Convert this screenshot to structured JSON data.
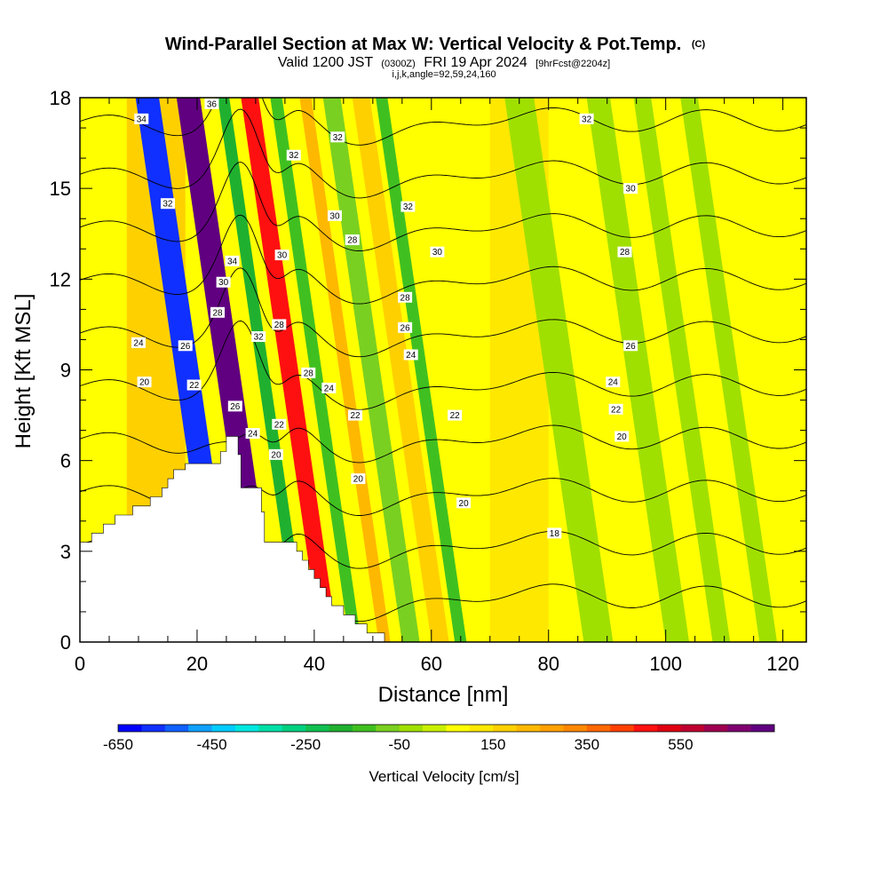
{
  "chart_data": {
    "type": "heatmap",
    "title": "Wind-Parallel Section at Max W: Vertical Velocity & Pot.Temp.",
    "title_mark": "(C)",
    "subtitle_parts": [
      "Valid 1200 JST",
      "(0300Z)",
      "FRI 19 Apr 2024",
      "[9hrFcst@2204z]"
    ],
    "subtitle2": "i,j,k,angle=92,59,24,160",
    "xlabel": "Distance [nm]",
    "ylabel": "Height [Kft MSL]",
    "xlim": [
      0,
      124
    ],
    "ylim": [
      0,
      18
    ],
    "x_ticks": [
      0,
      20,
      40,
      60,
      80,
      100,
      120
    ],
    "x_tick_labels": [
      "0",
      "20",
      "40",
      "60",
      "80",
      "100",
      "120"
    ],
    "y_ticks": [
      0,
      3,
      6,
      9,
      12,
      15,
      18
    ],
    "y_tick_labels": [
      "0",
      "3",
      "6",
      "9",
      "12",
      "15",
      "18"
    ],
    "colorbar": {
      "title": "Vertical Velocity [cm/s]",
      "levels_min": -650,
      "levels_max": 750,
      "step": 50,
      "labels": [
        "-650",
        "-450",
        "-250",
        "-50",
        "150",
        "350",
        "550"
      ],
      "label_values": [
        -650,
        -450,
        -250,
        -50,
        150,
        350,
        550
      ],
      "colors": [
        "#0000ff",
        "#1030ff",
        "#1060ff",
        "#10a0ff",
        "#00ccff",
        "#00e8e0",
        "#00e0a8",
        "#00d080",
        "#10c050",
        "#20b030",
        "#40c020",
        "#7ad020",
        "#a0e000",
        "#c8f000",
        "#ffff00",
        "#ffe800",
        "#ffd000",
        "#ffb800",
        "#ffa000",
        "#ff8800",
        "#ff6800",
        "#ff4000",
        "#ff1010",
        "#e00010",
        "#c00030",
        "#a00050",
        "#800070",
        "#600080"
      ]
    },
    "terrain": [
      [
        0,
        3.3
      ],
      [
        2,
        3.3
      ],
      [
        2,
        3.6
      ],
      [
        4,
        3.6
      ],
      [
        4,
        3.9
      ],
      [
        6,
        3.9
      ],
      [
        6,
        4.2
      ],
      [
        9,
        4.2
      ],
      [
        9,
        4.5
      ],
      [
        12,
        4.5
      ],
      [
        12,
        4.8
      ],
      [
        14,
        4.8
      ],
      [
        14,
        5.1
      ],
      [
        15,
        5.1
      ],
      [
        15,
        5.4
      ],
      [
        16,
        5.4
      ],
      [
        16,
        5.7
      ],
      [
        18,
        5.7
      ],
      [
        18,
        5.9
      ],
      [
        24,
        5.9
      ],
      [
        24,
        6.3
      ],
      [
        25,
        6.3
      ],
      [
        25,
        6.8
      ],
      [
        27,
        6.8
      ],
      [
        27,
        6.2
      ],
      [
        27.5,
        6.2
      ],
      [
        27.5,
        5.1
      ],
      [
        31,
        5.1
      ],
      [
        31,
        4.3
      ],
      [
        31.5,
        4.3
      ],
      [
        31.5,
        3.3
      ],
      [
        37,
        3.3
      ],
      [
        37,
        3.0
      ],
      [
        38,
        3.0
      ],
      [
        38,
        2.7
      ],
      [
        39,
        2.7
      ],
      [
        39,
        2.4
      ],
      [
        40,
        2.4
      ],
      [
        40,
        2.1
      ],
      [
        41,
        2.1
      ],
      [
        41,
        1.8
      ],
      [
        42,
        1.8
      ],
      [
        42,
        1.5
      ],
      [
        43,
        1.5
      ],
      [
        43,
        1.2
      ],
      [
        45,
        1.2
      ],
      [
        45,
        0.9
      ],
      [
        47,
        0.9
      ],
      [
        47,
        0.6
      ],
      [
        49,
        0.6
      ],
      [
        49,
        0.3
      ],
      [
        52,
        0.3
      ],
      [
        52,
        0
      ]
    ],
    "velocity_bands": [
      {
        "x": [
          0,
          124
        ],
        "w": 60
      },
      {
        "x": [
          8,
          18
        ],
        "w": 150
      },
      {
        "x": [
          23,
          27
        ],
        "w": -600
      },
      {
        "x": [
          30,
          34
        ],
        "w": 700
      },
      {
        "x": [
          37,
          39
        ],
        "w": -200
      },
      {
        "x": [
          41,
          44
        ],
        "w": 450
      },
      {
        "x": [
          46,
          48
        ],
        "w": -150
      },
      {
        "x": [
          51,
          53
        ],
        "w": 200
      },
      {
        "x": [
          55,
          58
        ],
        "w": -100
      },
      {
        "x": [
          60,
          63
        ],
        "w": 150
      },
      {
        "x": [
          64,
          66
        ],
        "w": -150
      },
      {
        "x": [
          70,
          80
        ],
        "w": 100
      },
      {
        "x": [
          86,
          91
        ],
        "w": -30
      },
      {
        "x": [
          100,
          104
        ],
        "w": -30
      },
      {
        "x": [
          108,
          111
        ],
        "w": -30
      },
      {
        "x": [
          116,
          119
        ],
        "w": -30
      }
    ],
    "theta_levels": [
      18,
      20,
      22,
      24,
      26,
      28,
      30,
      32,
      34,
      36
    ],
    "contour_labels": [
      {
        "text": "34",
        "x": 10.5,
        "y": 17.3
      },
      {
        "text": "36",
        "x": 22.5,
        "y": 17.8
      },
      {
        "text": "32",
        "x": 15,
        "y": 14.5
      },
      {
        "text": "24",
        "x": 10,
        "y": 9.9
      },
      {
        "text": "26",
        "x": 18,
        "y": 9.8
      },
      {
        "text": "20",
        "x": 11,
        "y": 8.6
      },
      {
        "text": "22",
        "x": 19.5,
        "y": 8.5
      },
      {
        "text": "28",
        "x": 23.5,
        "y": 10.9
      },
      {
        "text": "30",
        "x": 24.5,
        "y": 11.9
      },
      {
        "text": "34",
        "x": 26,
        "y": 12.6
      },
      {
        "text": "26",
        "x": 26.5,
        "y": 7.8
      },
      {
        "text": "24",
        "x": 29.5,
        "y": 6.9
      },
      {
        "text": "32",
        "x": 30.5,
        "y": 10.1
      },
      {
        "text": "28",
        "x": 34,
        "y": 10.5
      },
      {
        "text": "30",
        "x": 34.5,
        "y": 12.8
      },
      {
        "text": "22",
        "x": 34,
        "y": 7.2
      },
      {
        "text": "20",
        "x": 33.5,
        "y": 6.2
      },
      {
        "text": "32",
        "x": 36.5,
        "y": 16.1
      },
      {
        "text": "30",
        "x": 43.5,
        "y": 14.1
      },
      {
        "text": "32",
        "x": 44,
        "y": 16.7
      },
      {
        "text": "28",
        "x": 39,
        "y": 8.9
      },
      {
        "text": "24",
        "x": 42.5,
        "y": 8.4
      },
      {
        "text": "28",
        "x": 46.5,
        "y": 13.3
      },
      {
        "text": "22",
        "x": 47,
        "y": 7.5
      },
      {
        "text": "20",
        "x": 47.5,
        "y": 5.4
      },
      {
        "text": "32",
        "x": 56,
        "y": 14.4
      },
      {
        "text": "30",
        "x": 61,
        "y": 12.9
      },
      {
        "text": "28",
        "x": 55.5,
        "y": 11.4
      },
      {
        "text": "26",
        "x": 55.5,
        "y": 10.4
      },
      {
        "text": "24",
        "x": 56.5,
        "y": 9.5
      },
      {
        "text": "22",
        "x": 64,
        "y": 7.5
      },
      {
        "text": "20",
        "x": 65.5,
        "y": 4.6
      },
      {
        "text": "18",
        "x": 81,
        "y": 3.6
      },
      {
        "text": "32",
        "x": 86.5,
        "y": 17.3
      },
      {
        "text": "30",
        "x": 94,
        "y": 15
      },
      {
        "text": "28",
        "x": 93,
        "y": 12.9
      },
      {
        "text": "26",
        "x": 94,
        "y": 9.8
      },
      {
        "text": "24",
        "x": 91,
        "y": 8.6
      },
      {
        "text": "22",
        "x": 91.5,
        "y": 7.7
      },
      {
        "text": "20",
        "x": 92.5,
        "y": 6.8
      }
    ]
  }
}
